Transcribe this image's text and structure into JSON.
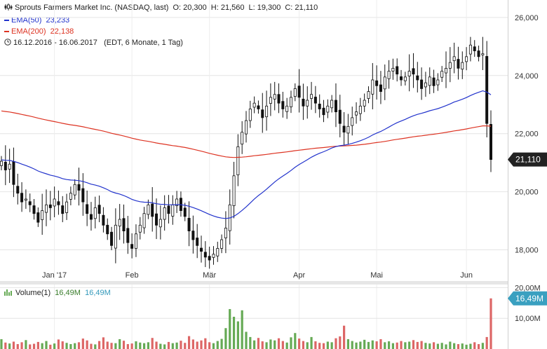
{
  "header": {
    "title": "Sprouts Farmers Market Inc. (NASDAQ, last)",
    "open": "O: 20,300",
    "high": "H: 21,560",
    "low": "L: 19,300",
    "close": "C: 21,110"
  },
  "legend": {
    "ema50_label": "EMA(50)",
    "ema50_value": "23,233",
    "ema50_color": "#2233cc",
    "ema200_label": "EMA(200)",
    "ema200_value": "22,138",
    "ema200_color": "#dd3322",
    "range": "16.12.2016 - 16.06.2017",
    "range_note": "(EDT, 6 Monate, 1 Tag)"
  },
  "last_price_label": "21,110",
  "volume": {
    "label": "Volume(1)",
    "value1": "16,49M",
    "value2": "16,49M",
    "current_label": "16,49M"
  },
  "chart_data": {
    "type": "candlestick",
    "x_ticks": [
      {
        "label": "Jan '17",
        "day": 13
      },
      {
        "label": "Feb",
        "day": 32
      },
      {
        "label": "Mär",
        "day": 51
      },
      {
        "label": "Apr",
        "day": 73
      },
      {
        "label": "Mai",
        "day": 92
      },
      {
        "label": "Jun",
        "day": 114
      }
    ],
    "y_ticks": [
      "26,000",
      "24,000",
      "22,000",
      "20,000",
      "18,000"
    ],
    "y_tick_values": [
      26,
      24,
      22,
      20,
      18
    ],
    "ylim": [
      17.0,
      26.6
    ],
    "volume_ticks": [
      "20,00M",
      "10,00M"
    ],
    "volume_tick_values": [
      20,
      10
    ],
    "volume_ylim": [
      0,
      21
    ],
    "up_color": "#66aa55",
    "down_color": "#dd6666",
    "closes": [
      21.05,
      20.75,
      20.95,
      20.25,
      19.95,
      19.65,
      19.75,
      19.55,
      19.25,
      18.95,
      19.35,
      19.55,
      19.45,
      19.75,
      19.55,
      19.25,
      19.65,
      19.95,
      20.25,
      20.05,
      19.65,
      19.25,
      19.05,
      19.45,
      19.25,
      18.85,
      18.55,
      18.15,
      18.85,
      19.05,
      18.65,
      18.25,
      18.05,
      18.55,
      18.85,
      19.25,
      19.55,
      19.15,
      18.85,
      19.05,
      19.45,
      19.25,
      19.55,
      19.75,
      19.35,
      19.15,
      18.65,
      18.35,
      18.15,
      17.95,
      17.75,
      17.65,
      17.85,
      18.05,
      18.35,
      18.75,
      19.55,
      20.55,
      21.55,
      22.05,
      22.45,
      22.85,
      23.05,
      22.85,
      22.55,
      22.95,
      23.25,
      23.35,
      23.05,
      22.85,
      22.95,
      23.25,
      23.55,
      23.25,
      22.95,
      23.15,
      23.35,
      23.05,
      22.85,
      22.65,
      22.95,
      23.15,
      22.75,
      22.35,
      22.05,
      22.25,
      22.55,
      22.75,
      22.95,
      23.15,
      23.45,
      23.85,
      23.65,
      23.45,
      23.95,
      24.15,
      24.25,
      24.05,
      23.85,
      23.95,
      24.15,
      24.05,
      23.85,
      23.55,
      23.75,
      23.95,
      23.65,
      23.85,
      24.15,
      24.25,
      24.45,
      24.65,
      24.25,
      24.45,
      24.65,
      25.05,
      24.85,
      24.65,
      24.75,
      22.35,
      21.11
    ],
    "volumes": [
      3.2,
      2.1,
      1.8,
      2.4,
      1.6,
      2.2,
      2.9,
      1.5,
      1.7,
      2.3,
      1.9,
      2.6,
      1.4,
      1.8,
      3.1,
      2.5,
      2.0,
      1.6,
      1.9,
      2.2,
      3.4,
      2.8,
      1.7,
      1.5,
      2.6,
      3.8,
      2.4,
      2.0,
      1.9,
      3.2,
      2.7,
      1.6,
      1.8,
      2.5,
      2.1,
      1.9,
      2.2,
      3.6,
      2.4,
      1.7,
      1.5,
      2.3,
      1.9,
      2.1,
      2.7,
      2.0,
      4.2,
      3.1,
      2.4,
      2.8,
      3.5,
      2.2,
      1.9,
      2.6,
      3.3,
      6.8,
      13.0,
      10.5,
      9.0,
      12.6,
      5.6,
      3.9,
      2.8,
      3.6,
      2.5,
      2.2,
      3.1,
      2.8,
      3.5,
      2.6,
      2.1,
      3.8,
      5.2,
      3.4,
      2.6,
      2.2,
      3.9,
      2.5,
      2.0,
      1.9,
      2.4,
      2.2,
      3.5,
      4.1,
      7.6,
      3.2,
      2.6,
      2.1,
      2.4,
      3.0,
      2.3,
      2.8,
      2.5,
      3.2,
      2.2,
      2.5,
      1.9,
      2.1,
      2.6,
      2.2,
      2.4,
      2.9,
      2.3,
      2.6,
      2.0,
      1.8,
      2.2,
      1.7,
      2.0,
      1.5,
      2.4,
      1.9,
      1.6,
      1.8,
      1.4,
      1.7,
      2.2,
      1.6,
      2.0,
      3.9,
      16.49
    ]
  }
}
